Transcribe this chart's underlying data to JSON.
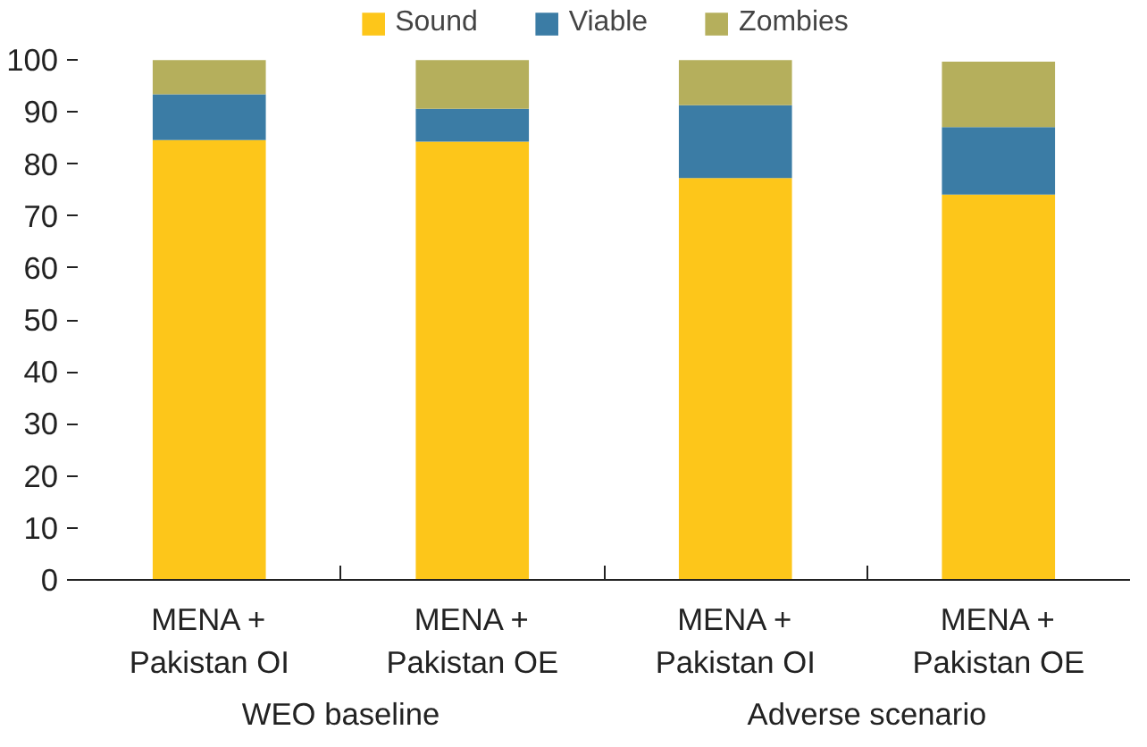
{
  "chart_data": {
    "type": "bar",
    "stacked": true,
    "categories": [
      "MENA +\nPakistan OI",
      "MENA +\nPakistan OE",
      "MENA +\nPakistan OI",
      "MENA +\nPakistan OE"
    ],
    "series": [
      {
        "name": "Sound",
        "color": "#fdc61a",
        "values": [
          84.6,
          84.3,
          77.3,
          74.1
        ]
      },
      {
        "name": "Viable",
        "color": "#3b7ca5",
        "values": [
          8.8,
          6.3,
          14.0,
          13.0
        ]
      },
      {
        "name": "Zombies",
        "color": "#b5af5c",
        "values": [
          6.6,
          9.4,
          8.7,
          12.6
        ]
      }
    ],
    "annotations": [
      "WEO baseline",
      "Adverse scenario"
    ],
    "ylim": [
      0,
      100
    ],
    "yticks": [
      0,
      10,
      20,
      30,
      40,
      50,
      60,
      70,
      80,
      90,
      100
    ],
    "grid": false,
    "legend": "top"
  }
}
